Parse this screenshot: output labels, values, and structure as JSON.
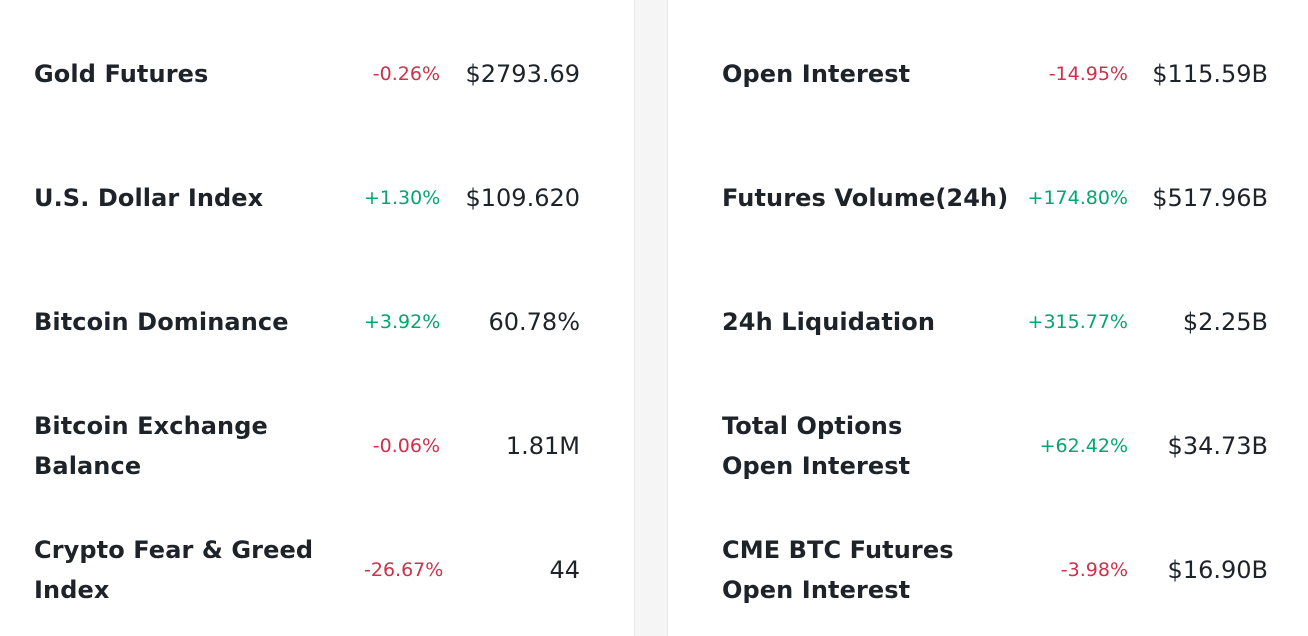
{
  "colors": {
    "negative": "#cf304a",
    "positive": "#03a66d",
    "text": "#1e2329",
    "divider_bg": "#f5f5f5"
  },
  "left": [
    {
      "label": "Gold Futures",
      "change": "-0.26%",
      "direction": "negative",
      "value": "$2793.69"
    },
    {
      "label": "U.S. Dollar Index",
      "change": "+1.30%",
      "direction": "positive",
      "value": "$109.620"
    },
    {
      "label": "Bitcoin Dominance",
      "change": "+3.92%",
      "direction": "positive",
      "value": "60.78%"
    },
    {
      "label": "Bitcoin Exchange Balance",
      "change": "-0.06%",
      "direction": "negative",
      "value": "1.81M"
    },
    {
      "label": "Crypto Fear & Greed Index",
      "change": "-26.67%",
      "direction": "negative",
      "value": "44"
    }
  ],
  "right": [
    {
      "label": "Open Interest",
      "change": "-14.95%",
      "direction": "negative",
      "value": "$115.59B"
    },
    {
      "label": "Futures Volume(24h)",
      "change": "+174.80%",
      "direction": "positive",
      "value": "$517.96B"
    },
    {
      "label": "24h Liquidation",
      "change": "+315.77%",
      "direction": "positive",
      "value": "$2.25B"
    },
    {
      "label": "Total Options Open Interest",
      "change": "+62.42%",
      "direction": "positive",
      "value": "$34.73B"
    },
    {
      "label": "CME BTC Futures Open Interest",
      "change": "-3.98%",
      "direction": "negative",
      "value": "$16.90B"
    }
  ]
}
